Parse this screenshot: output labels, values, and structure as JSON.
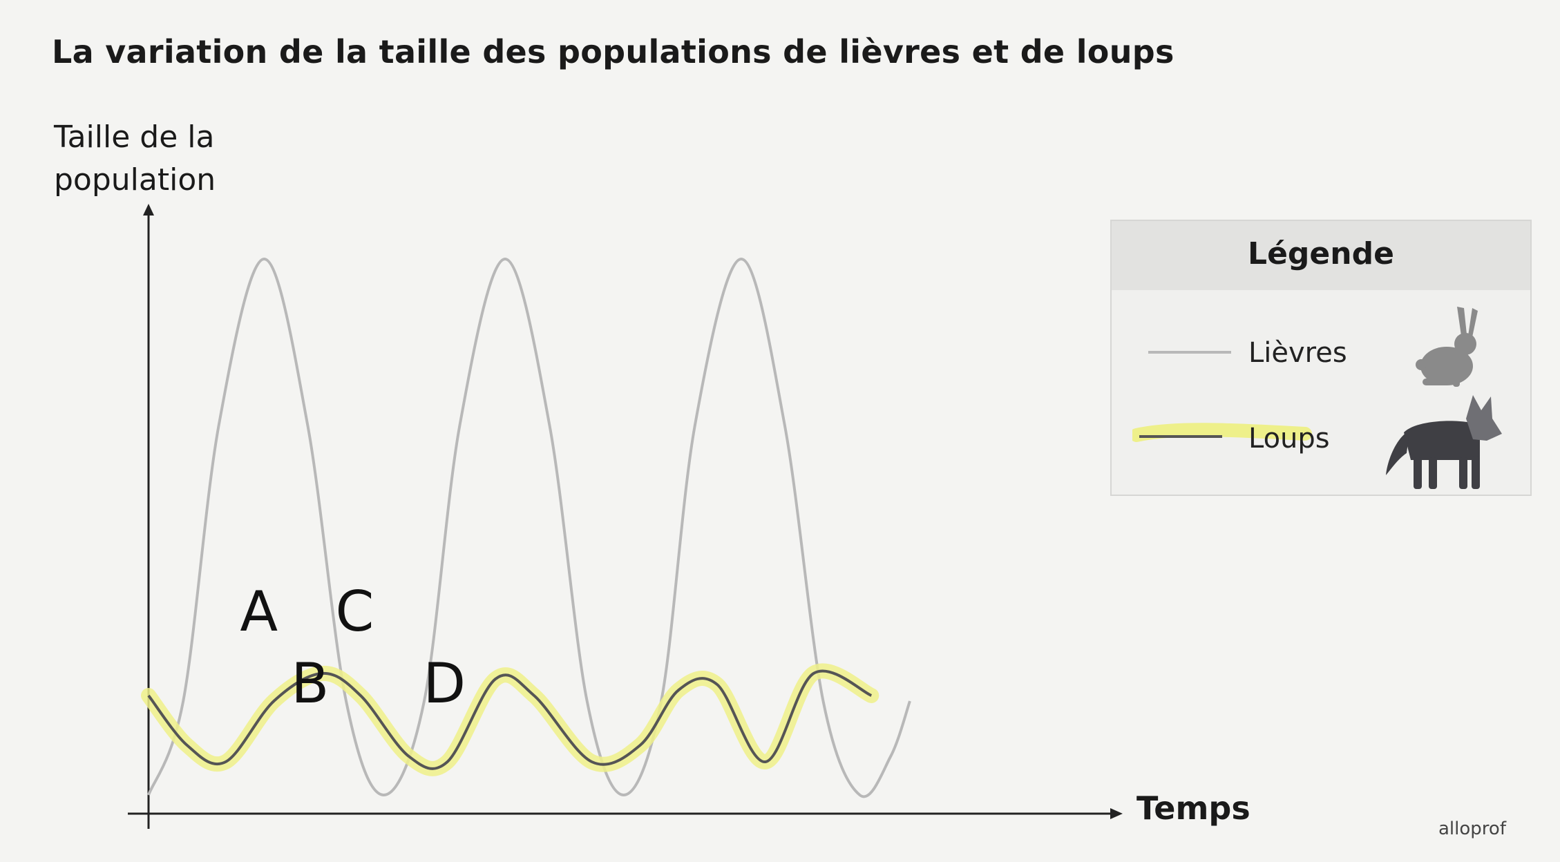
{
  "chart_data": {
    "type": "line",
    "title": "La variation de la taille des populations de lièvres et de loups",
    "ylabel": "Taille de la population",
    "xlabel": "Temps",
    "legend": {
      "title": "Légende",
      "placement": "right",
      "entries": [
        "Lièvres",
        "Loups"
      ]
    },
    "xlim": [
      0,
      100
    ],
    "ylim": [
      0,
      100
    ],
    "grid": false,
    "series": [
      {
        "name": "Lièvres",
        "color": "#b8b8b8",
        "x": [
          0,
          3.6,
          7.3,
          12,
          16.5,
          20.5,
          24.4,
          28.6,
          32.3,
          37,
          41.6,
          45.5,
          49.3,
          53.2,
          56.7,
          61.5,
          66,
          70,
          73.8,
          77,
          79
        ],
        "y": [
          3,
          20,
          70,
          100,
          70,
          20,
          3,
          20,
          70,
          100,
          70,
          20,
          3,
          20,
          70,
          100,
          70,
          20,
          3,
          10,
          20
        ]
      },
      {
        "name": "Loups",
        "color": "#555555",
        "highlight_color": "#eef08a",
        "x": [
          0,
          4,
          8,
          13,
          18,
          22,
          27,
          31,
          36,
          40,
          46,
          51,
          55,
          59,
          64,
          69,
          75
        ],
        "y": [
          21,
          12,
          9,
          20,
          25,
          21,
          10,
          9,
          24,
          21,
          9,
          12,
          22,
          23,
          9,
          25,
          21
        ]
      }
    ],
    "annotations": [
      {
        "text": "A",
        "x": 11.5,
        "y": 36
      },
      {
        "text": "B",
        "x": 16.8,
        "y": 23
      },
      {
        "text": "C",
        "x": 21.4,
        "y": 36
      },
      {
        "text": "D",
        "x": 30.5,
        "y": 23
      }
    ]
  },
  "watermark": "alloprof",
  "icons": {
    "hare": "hare-icon",
    "wolf": "wolf-icon"
  }
}
